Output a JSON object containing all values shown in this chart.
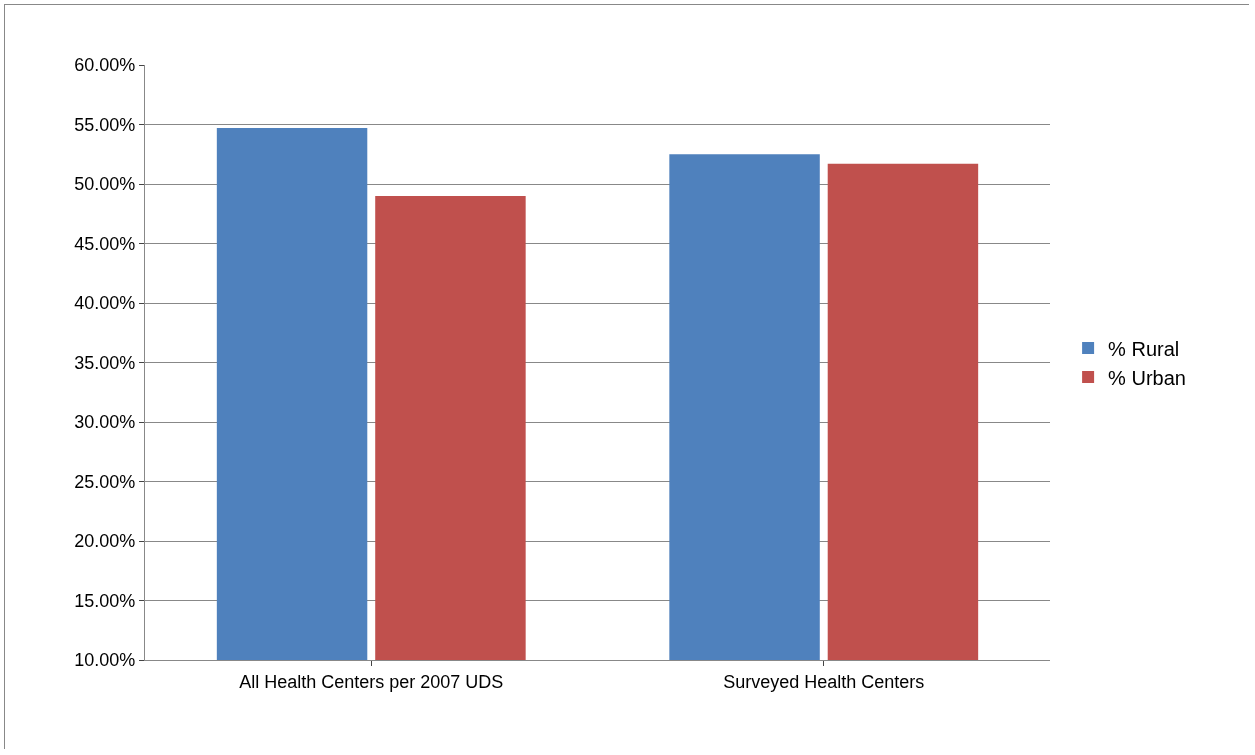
{
  "chart_data": {
    "type": "bar",
    "categories": [
      "All Health Centers per 2007 UDS",
      "Surveyed Health Centers"
    ],
    "series": [
      {
        "name": "% Rural",
        "color": "#4f81bd",
        "values": [
          54.7,
          52.5
        ]
      },
      {
        "name": "% Urban",
        "color": "#c0504d",
        "values": [
          49.0,
          51.7
        ]
      }
    ],
    "ylim": [
      10,
      60
    ],
    "yticks": [
      {
        "value": 10,
        "label": "10.00%"
      },
      {
        "value": 15,
        "label": "15.00%"
      },
      {
        "value": 20,
        "label": "20.00%"
      },
      {
        "value": 25,
        "label": "25.00%"
      },
      {
        "value": 30,
        "label": "30.00%"
      },
      {
        "value": 35,
        "label": "35.00%"
      },
      {
        "value": 40,
        "label": "40.00%"
      },
      {
        "value": 45,
        "label": "45.00%"
      },
      {
        "value": 50,
        "label": "50.00%"
      },
      {
        "value": 55,
        "label": "55.00%"
      },
      {
        "value": 60,
        "label": "60.00%"
      }
    ],
    "grid": true,
    "legend": "right"
  }
}
